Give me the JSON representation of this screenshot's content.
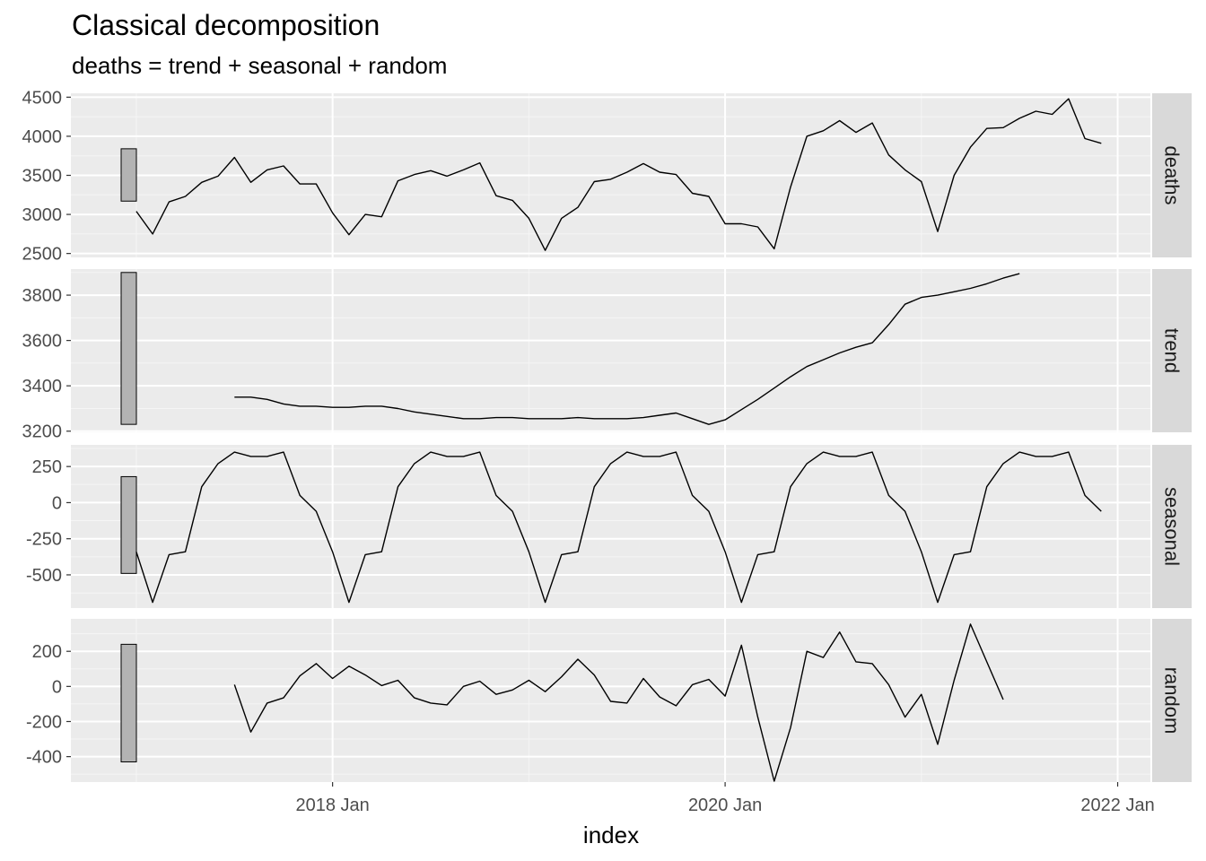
{
  "chart_data": {
    "type": "line",
    "title": "Classical decomposition",
    "subtitle": "deaths = trend + seasonal + random",
    "xlabel": "index",
    "x_start": "2017 Jan",
    "x_ticks": [
      "2018 Jan",
      "2020 Jan",
      "2022 Jan"
    ],
    "x_tick_values": [
      "2018-01",
      "2020-01",
      "2022-01"
    ],
    "xlim": [
      "2016-09",
      "2022-03"
    ],
    "grid": true,
    "facets": [
      {
        "name": "deaths",
        "ylim": [
          2450,
          4550
        ],
        "yticks": [
          2500,
          3000,
          3500,
          4000,
          4500
        ],
        "ytick_labels": [
          "2500",
          "3000",
          "3500",
          "4000",
          "4500"
        ],
        "scale_bar": [
          3170,
          3840
        ],
        "values": [
          3040,
          2750,
          3160,
          3230,
          3410,
          3490,
          3730,
          3410,
          3570,
          3620,
          3390,
          3390,
          3020,
          2740,
          3000,
          2970,
          3430,
          3510,
          3560,
          3490,
          3570,
          3660,
          3240,
          3180,
          2950,
          2540,
          2950,
          3090,
          3420,
          3450,
          3540,
          3650,
          3540,
          3510,
          3270,
          3230,
          2880,
          2880,
          2840,
          2560,
          3350,
          4000,
          4070,
          4200,
          4050,
          4170,
          3760,
          3570,
          3420,
          2780,
          3500,
          3860,
          4100,
          4110,
          4230,
          4320,
          4280,
          4480,
          3970,
          3910
        ]
      },
      {
        "name": "trend",
        "ylim": [
          3195,
          3915
        ],
        "yticks": [
          3200,
          3400,
          3600,
          3800
        ],
        "ytick_labels": [
          "3200",
          "3400",
          "3600",
          "3800"
        ],
        "scale_bar": [
          3230,
          3900
        ],
        "values": [
          null,
          null,
          null,
          null,
          null,
          null,
          3350,
          3350,
          3340,
          3320,
          3310,
          3310,
          3305,
          3305,
          3310,
          3310,
          3300,
          3285,
          3275,
          3265,
          3255,
          3255,
          3260,
          3260,
          3255,
          3255,
          3255,
          3260,
          3255,
          3255,
          3255,
          3260,
          3270,
          3280,
          3255,
          3230,
          3250,
          3295,
          3340,
          3390,
          3440,
          3485,
          3515,
          3545,
          3570,
          3590,
          3670,
          3760,
          3790,
          3800,
          3815,
          3830,
          3850,
          3875,
          3895,
          null,
          null,
          null,
          null,
          null
        ]
      },
      {
        "name": "seasonal",
        "ylim": [
          -730,
          400
        ],
        "yticks": [
          -500,
          -250,
          0,
          250
        ],
        "ytick_labels": [
          "-500",
          "-250",
          "0",
          "250"
        ],
        "scale_bar": [
          -490,
          180
        ],
        "values": [
          -340,
          -690,
          -360,
          -340,
          110,
          270,
          350,
          320,
          320,
          350,
          50,
          -60,
          -340,
          -690,
          -360,
          -340,
          110,
          270,
          350,
          320,
          320,
          350,
          50,
          -60,
          -340,
          -690,
          -360,
          -340,
          110,
          270,
          350,
          320,
          320,
          350,
          50,
          -60,
          -340,
          -690,
          -360,
          -340,
          110,
          270,
          350,
          320,
          320,
          350,
          50,
          -60,
          -340,
          -690,
          -360,
          -340,
          110,
          270,
          350,
          320,
          320,
          350,
          50,
          -60
        ]
      },
      {
        "name": "random",
        "ylim": [
          -545,
          385
        ],
        "yticks": [
          -400,
          -200,
          0,
          200
        ],
        "ytick_labels": [
          "-400",
          "-200",
          "0",
          "200"
        ],
        "scale_bar": [
          -430,
          240
        ],
        "values": [
          null,
          null,
          null,
          null,
          null,
          null,
          10,
          -260,
          -95,
          -65,
          60,
          130,
          45,
          115,
          65,
          5,
          35,
          -65,
          -95,
          -105,
          0,
          30,
          -45,
          -20,
          35,
          -30,
          55,
          155,
          65,
          -85,
          -95,
          45,
          -60,
          -110,
          10,
          40,
          -55,
          235,
          -175,
          -540,
          -235,
          200,
          165,
          310,
          140,
          130,
          10,
          -175,
          -45,
          -330,
          35,
          355,
          140,
          -75,
          null,
          null,
          null,
          null,
          null,
          null
        ]
      }
    ]
  }
}
